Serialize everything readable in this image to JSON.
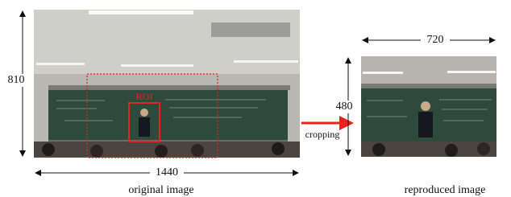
{
  "original": {
    "height": "810",
    "width": "1440",
    "caption": "original image",
    "roi_label": "ROI"
  },
  "process": {
    "label": "cropping"
  },
  "reproduced": {
    "width": "720",
    "height": "480",
    "caption": "reproduced image"
  }
}
